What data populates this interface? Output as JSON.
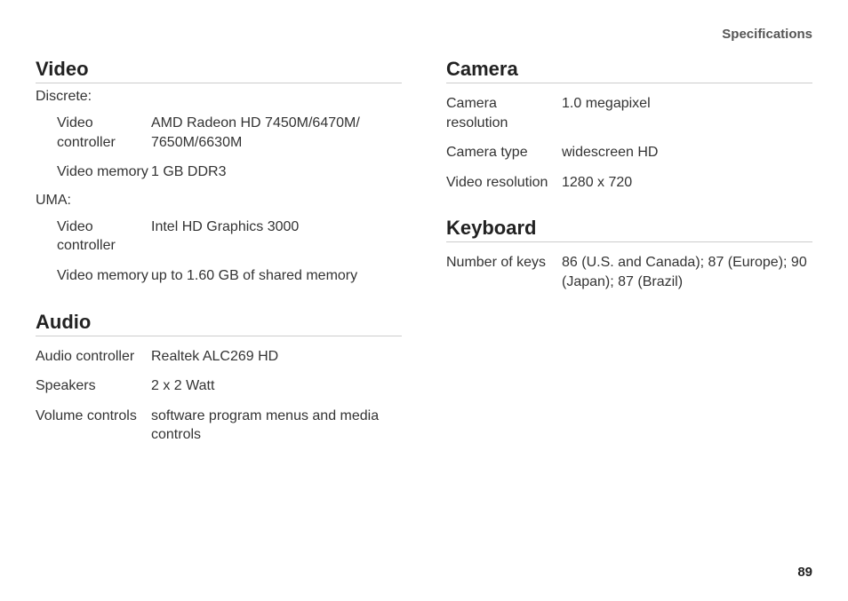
{
  "header": "Specifications",
  "pageNumber": "89",
  "video": {
    "title": "Video",
    "discreteLabel": "Discrete:",
    "discrete": {
      "controllerLabel": "Video controller",
      "controllerValue": "AMD Radeon HD 7450M/6470M/ 7650M/6630M",
      "memoryLabel": "Video memory",
      "memoryValue": "1 GB DDR3"
    },
    "umaLabel": "UMA:",
    "uma": {
      "controllerLabel": "Video controller",
      "controllerValue": "Intel HD Graphics 3000",
      "memoryLabel": "Video memory",
      "memoryValue": "up to 1.60 GB of shared memory"
    }
  },
  "audio": {
    "title": "Audio",
    "controllerLabel": "Audio controller",
    "controllerValue": "Realtek ALC269 HD",
    "speakersLabel": "Speakers",
    "speakersValue": "2 x 2 Watt",
    "volumeLabel": "Volume controls",
    "volumeValue": "software program menus and media controls"
  },
  "camera": {
    "title": "Camera",
    "resLabel": "Camera resolution",
    "resValue": "1.0 megapixel",
    "typeLabel": "Camera type",
    "typeValue": "widescreen HD",
    "vresLabel": "Video resolution",
    "vresValue": "1280 x 720"
  },
  "keyboard": {
    "title": "Keyboard",
    "keysLabel": "Number of keys",
    "keysValue": "86 (U.S. and Canada); 87 (Europe); 90 (Japan); 87 (Brazil)"
  }
}
